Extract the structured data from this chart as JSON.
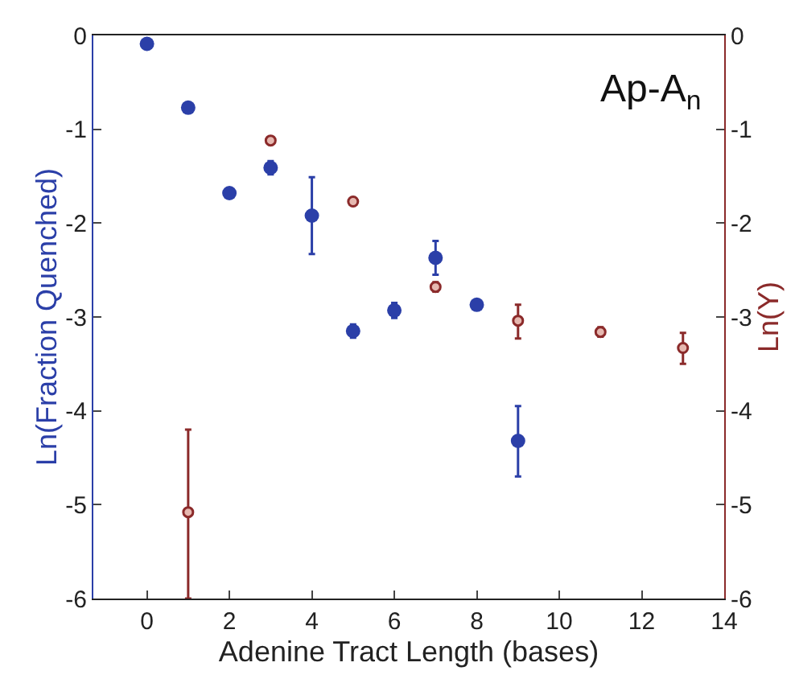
{
  "chart_data": {
    "type": "scatter",
    "xlabel": "Adenine Tract Length (bases)",
    "ylabel": "Ln(Fraction Quenched)",
    "y2label": "Ln(Y)",
    "annotations": [
      "Ap-A$_{n}$"
    ],
    "marker": "circle",
    "legend": false,
    "xlim": [
      -1.3,
      14
    ],
    "xticks": [
      0,
      2,
      4,
      6,
      8,
      10,
      12,
      14
    ],
    "ylim": [
      -6,
      0
    ],
    "yticks": [
      -6,
      -5,
      -4,
      -3,
      -2,
      -1,
      0
    ],
    "y2lim": [
      -6,
      0
    ],
    "y2ticks": [
      -6,
      -5,
      -4,
      -3,
      -2,
      -1,
      0
    ],
    "series": [
      {
        "color": "#2b3fa8",
        "x": [
          0,
          1,
          2,
          3,
          4,
          5,
          6,
          7,
          8,
          9
        ],
        "values": [
          -0.09,
          -0.77,
          -1.68,
          -1.41,
          -1.92,
          -3.15,
          -2.93,
          -2.37,
          -2.87,
          -4.32
        ],
        "errors": [
          null,
          null,
          null,
          [
            -1.48,
            -1.34
          ],
          [
            -2.33,
            -1.51
          ],
          [
            -3.22,
            -3.08
          ],
          [
            -3.01,
            -2.85
          ],
          [
            -2.55,
            -2.19
          ],
          null,
          [
            -4.7,
            -3.95
          ]
        ]
      },
      {
        "color": "#8b2a2a",
        "axis": "y2",
        "x": [
          1,
          3,
          5,
          7,
          9,
          11,
          13
        ],
        "values": [
          -5.08,
          -1.12,
          -1.77,
          -2.68,
          -3.04,
          -3.16,
          -3.33
        ],
        "errors": [
          [
            -6,
            -4.2
          ],
          null,
          null,
          [
            -2.73,
            -2.63
          ],
          [
            -3.23,
            -2.87
          ],
          [
            -3.21,
            -3.11
          ],
          [
            -3.5,
            -3.17
          ]
        ]
      }
    ]
  }
}
